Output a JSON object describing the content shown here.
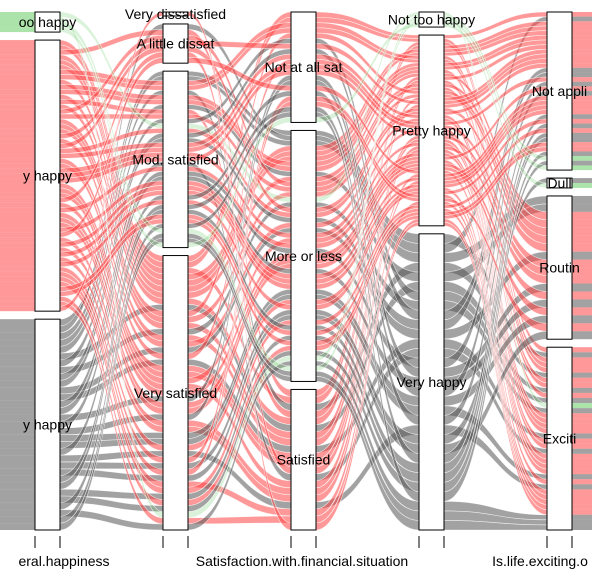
{
  "chart_data": {
    "type": "parallel-sets",
    "title": "",
    "dimensions": [
      {
        "label": "General.happiness",
        "visible_label": "eral.happiness",
        "categories": [
          {
            "name": "Not too happy",
            "visible_label": "oo happy",
            "count": 4
          },
          {
            "name": "Pretty happy",
            "visible_label": "y happy",
            "count": 54
          },
          {
            "name": "Very happy",
            "visible_label": "y happy",
            "count": 42
          }
        ]
      },
      {
        "label": "Satisfaction.with.financial.situation",
        "visible_label": "Satisfaction.with.financial.situation",
        "categories": [
          {
            "name": "Very dissatisfied",
            "visible_label": "Very dissatisfied",
            "count": 0.5
          },
          {
            "name": "A little dissat",
            "visible_label": "A little dissat",
            "count": 8
          },
          {
            "name": "Mod. satisfied",
            "visible_label": "Mod. satisfied",
            "count": 36
          },
          {
            "name": "Very satisfied",
            "visible_label": "Very satisfied",
            "count": 56
          }
        ]
      },
      {
        "label": "Satisfaction.with.financial.situation",
        "visible_label": "",
        "categories": [
          {
            "name": "Not at all sat",
            "visible_label": "Not at all sat",
            "count": 22
          },
          {
            "name": "More or less",
            "visible_label": "More or less",
            "count": 50
          },
          {
            "name": "Satisfied",
            "visible_label": "Satisfied",
            "count": 28
          }
        ]
      },
      {
        "label": "General.happiness",
        "visible_label": "",
        "categories": [
          {
            "name": "Not too happy",
            "visible_label": "Not too happy",
            "count": 3
          },
          {
            "name": "Pretty happy",
            "visible_label": "Pretty happy",
            "count": 38
          },
          {
            "name": "Very happy",
            "visible_label": "Very happy",
            "count": 59
          }
        ]
      },
      {
        "label": "Is.life.exciting.or.dull",
        "visible_label": "Is.life.exciting.o",
        "categories": [
          {
            "name": "Not applicable",
            "visible_label": "Not appli",
            "count": 32
          },
          {
            "name": "Dull",
            "visible_label": "Dull",
            "count": 2
          },
          {
            "name": "Routine",
            "visible_label": "Routin",
            "count": 29
          },
          {
            "name": "Exciting",
            "visible_label": "Exciti",
            "count": 37
          }
        ]
      }
    ],
    "ribbon_color_variable": "General.happiness",
    "ribbon_colors": {
      "Not too happy": "#66cc66",
      "Pretty happy": "#ff4444",
      "Very happy": "#555555"
    },
    "grid": false,
    "legend": "none"
  }
}
